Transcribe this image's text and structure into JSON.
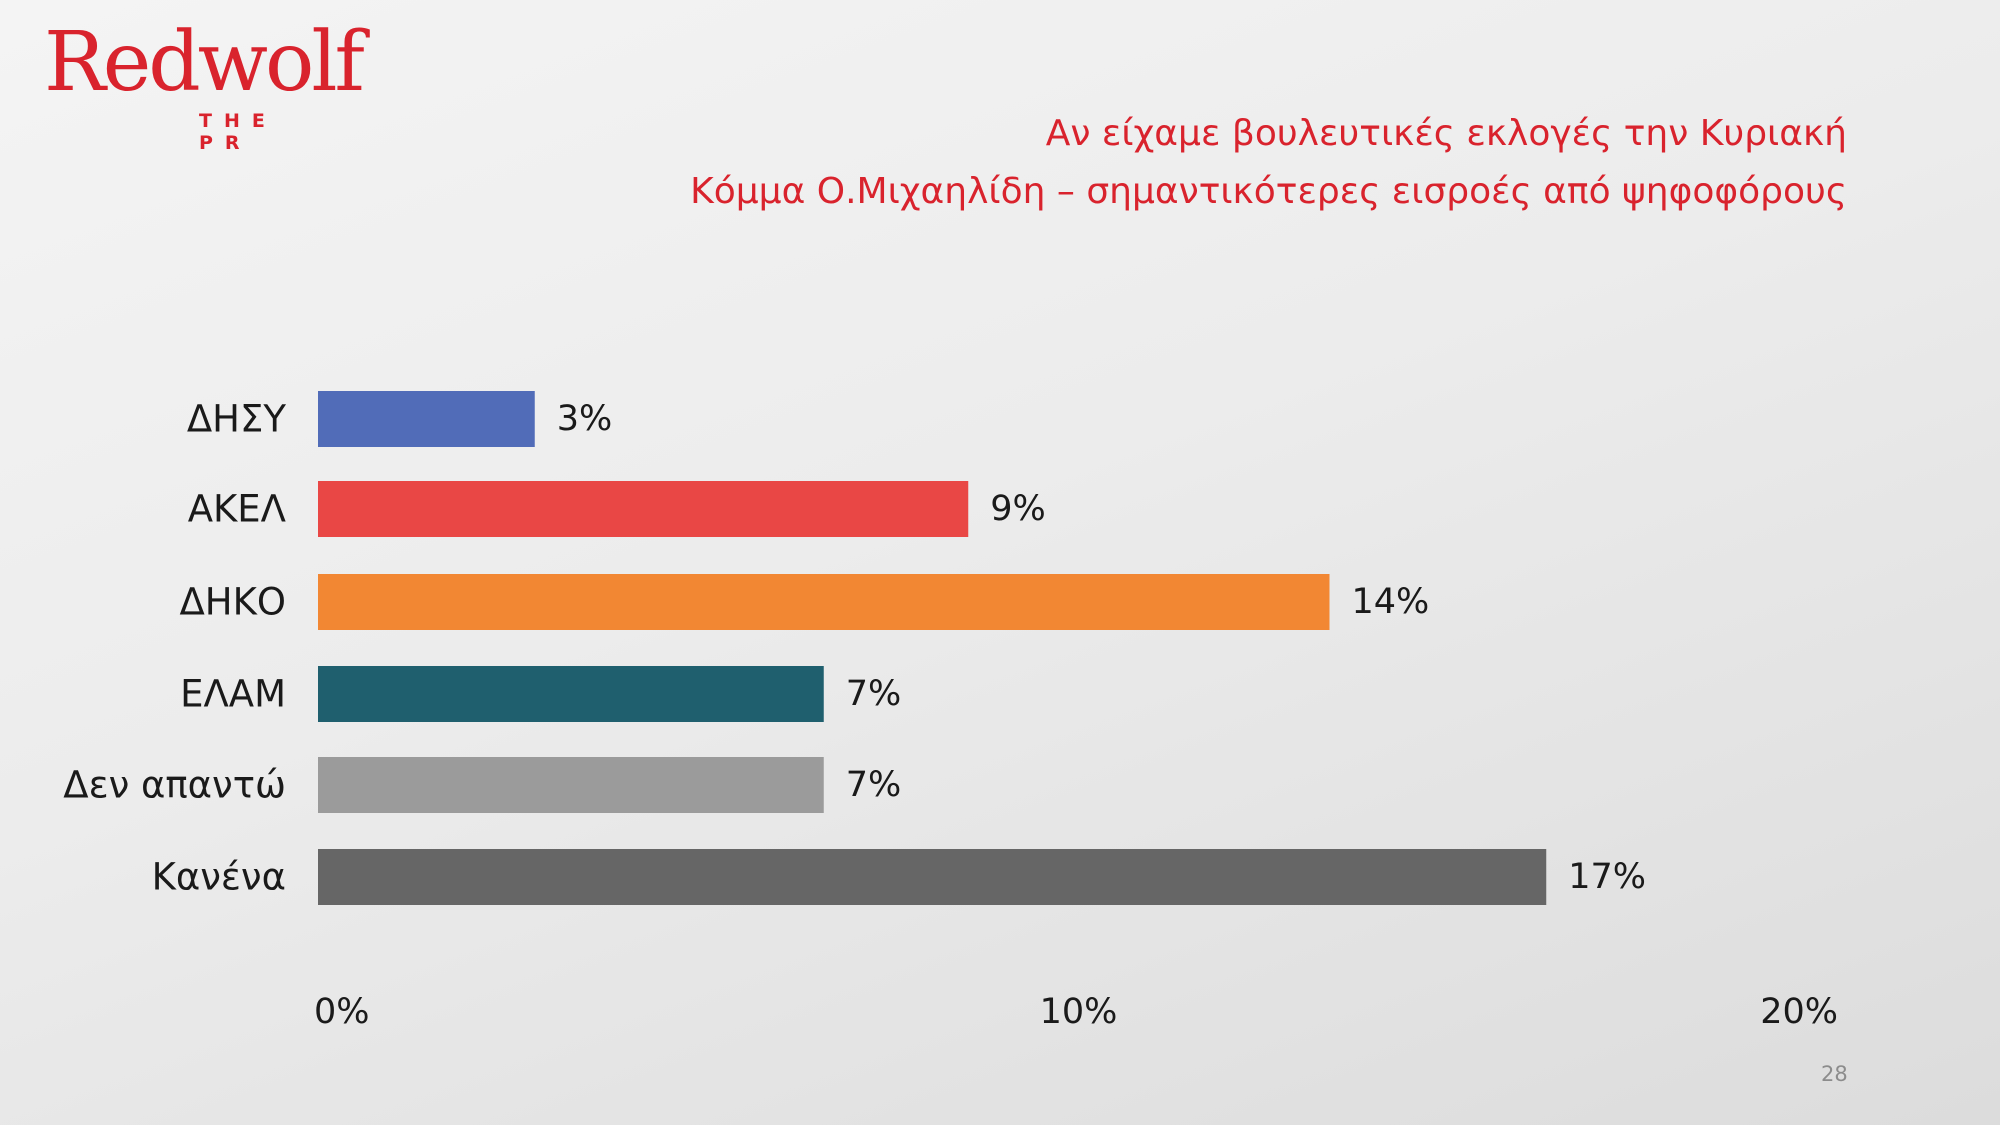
{
  "logo": {
    "text": "Redwolf",
    "sub": "THE PR"
  },
  "title": "Αν είχαμε βουλευτικές εκλογές την Κυριακή",
  "subtitle": "Κόμμα Ο.Μιχαηλίδη – σημαντικότερες εισροές από ψηφοφόρους",
  "page_number": "28",
  "chart_data": {
    "type": "bar",
    "orientation": "horizontal",
    "categories": [
      "ΔΗΣΥ",
      "ΑΚΕΛ",
      "ΔΗΚΟ",
      "ΕΛΑΜ",
      "Δεν απαντώ",
      "Κανένα"
    ],
    "values": [
      3,
      9,
      14,
      7,
      7,
      17
    ],
    "value_labels": [
      "3%",
      "9%",
      "14%",
      "7%",
      "7%",
      "17%"
    ],
    "colors": [
      "#516cb8",
      "#e94745",
      "#f28733",
      "#1f5f6e",
      "#9b9b9b",
      "#666666"
    ],
    "xlim": [
      0,
      20
    ],
    "x_ticks": [
      0,
      10,
      20
    ],
    "x_tick_labels": [
      "0%",
      "10%",
      "20%"
    ],
    "xlabel": "",
    "ylabel": "",
    "grid": false,
    "legend": "none"
  }
}
